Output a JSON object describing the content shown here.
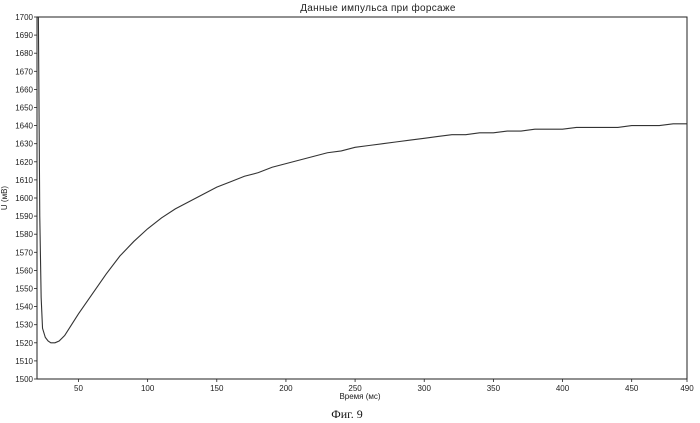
{
  "chart_data": {
    "type": "line",
    "title": "Данные импульса при форсаже",
    "xlabel": "Время (мс)",
    "ylabel": "U (мВ)",
    "caption": "Фиг. 9",
    "xlim": [
      20,
      490
    ],
    "ylim": [
      1500,
      1700
    ],
    "x_ticks": [
      50,
      100,
      150,
      200,
      250,
      300,
      350,
      400,
      450,
      490
    ],
    "y_ticks": [
      1500,
      1510,
      1520,
      1530,
      1540,
      1550,
      1560,
      1570,
      1580,
      1590,
      1600,
      1610,
      1620,
      1630,
      1640,
      1650,
      1660,
      1670,
      1680,
      1690,
      1700
    ],
    "grid": false,
    "series": [
      {
        "name": "",
        "x": [
          21,
          22,
          23,
          24,
          26,
          28,
          30,
          33,
          36,
          40,
          45,
          50,
          60,
          70,
          80,
          90,
          100,
          110,
          120,
          130,
          140,
          150,
          160,
          170,
          180,
          190,
          200,
          210,
          220,
          230,
          240,
          250,
          260,
          270,
          280,
          290,
          300,
          310,
          320,
          330,
          340,
          350,
          360,
          370,
          380,
          390,
          400,
          410,
          420,
          430,
          440,
          450,
          460,
          470,
          480,
          490
        ],
        "y": [
          1700,
          1590,
          1545,
          1528,
          1523,
          1521,
          1520,
          1520,
          1521,
          1524,
          1530,
          1536,
          1547,
          1558,
          1568,
          1576,
          1583,
          1589,
          1594,
          1598,
          1602,
          1606,
          1609,
          1612,
          1614,
          1617,
          1619,
          1621,
          1623,
          1625,
          1626,
          1628,
          1629,
          1630,
          1631,
          1632,
          1633,
          1634,
          1635,
          1635,
          1636,
          1636,
          1637,
          1637,
          1638,
          1638,
          1638,
          1639,
          1639,
          1639,
          1639,
          1640,
          1640,
          1640,
          1641,
          1641
        ]
      }
    ]
  }
}
